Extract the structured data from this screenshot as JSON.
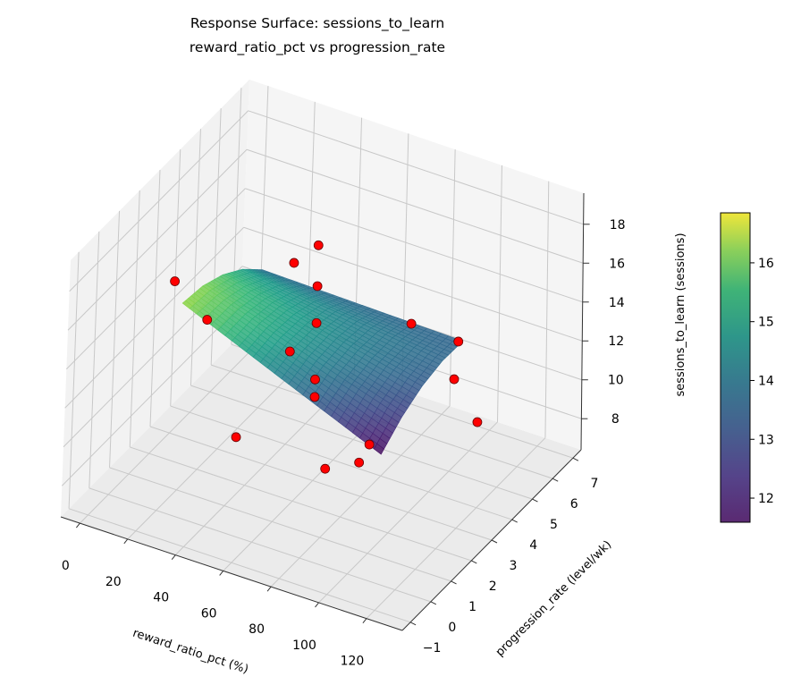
{
  "chart_data": {
    "type": "scatter",
    "subtype": "3d-surface-with-scatter",
    "title": [
      "Response Surface: sessions_to_learn",
      "reward_ratio_pct vs progression_rate"
    ],
    "xlabel": "reward_ratio_pct (%)",
    "ylabel": "progression_rate (level/wk)",
    "zlabel": "sessions_to_learn (sessions)",
    "xlim": [
      -8,
      135
    ],
    "ylim": [
      -1.4,
      7.4
    ],
    "zlim": [
      6.4,
      19.6
    ],
    "xticks": [
      "0",
      "20",
      "40",
      "60",
      "80",
      "100",
      "120"
    ],
    "yticks": [
      "−1",
      "0",
      "1",
      "2",
      "3",
      "4",
      "5",
      "6",
      "7"
    ],
    "zticks": [
      "8",
      "10",
      "12",
      "14",
      "16",
      "18"
    ],
    "grid": true,
    "surface": {
      "x": [
        20,
        41.25,
        62.5,
        83.75,
        105
      ],
      "y": [
        1,
        2,
        3,
        4,
        5
      ],
      "z": [
        [
          16.0,
          14.93,
          13.85,
          12.78,
          11.7
        ],
        [
          15.83,
          15.01,
          14.19,
          13.37,
          12.55
        ],
        [
          15.35,
          14.79,
          14.23,
          13.66,
          13.1
        ],
        [
          14.58,
          14.27,
          13.97,
          13.66,
          13.35
        ],
        [
          13.5,
          13.45,
          13.4,
          13.35,
          13.3
        ]
      ],
      "colormap": "viridis",
      "alpha": 0.85
    },
    "points": [
      {
        "x": 60,
        "y": 3,
        "z": 18.5
      },
      {
        "x": 60,
        "y": 3,
        "z": 16.4
      },
      {
        "x": 60,
        "y": 3,
        "z": 14.5
      },
      {
        "x": 60,
        "y": 3,
        "z": 11.6
      },
      {
        "x": 60,
        "y": 3,
        "z": 10.7
      },
      {
        "x": 0,
        "y": 3,
        "z": 14.2
      },
      {
        "x": 10,
        "y": 3.5,
        "z": 12.1
      },
      {
        "x": 25,
        "y": 6,
        "z": 13.0
      },
      {
        "x": 45,
        "y": 3.5,
        "z": 11.9
      },
      {
        "x": 100,
        "y": 3,
        "z": 16.1
      },
      {
        "x": 120,
        "y": 3,
        "z": 16.0
      },
      {
        "x": 110,
        "y": 4,
        "z": 12.6
      },
      {
        "x": 120,
        "y": 4,
        "z": 10.8
      },
      {
        "x": 40,
        "y": 1.5,
        "z": 9.4
      },
      {
        "x": 90,
        "y": 0,
        "z": 11.4
      },
      {
        "x": 100,
        "y": 0.5,
        "z": 11.6
      },
      {
        "x": 100,
        "y": 1,
        "z": 12.0
      }
    ],
    "point_color": "#ff0000",
    "colorbar": {
      "range": [
        11.59,
        16.85
      ],
      "ticks": [
        "12",
        "13",
        "14",
        "15",
        "16"
      ]
    }
  }
}
